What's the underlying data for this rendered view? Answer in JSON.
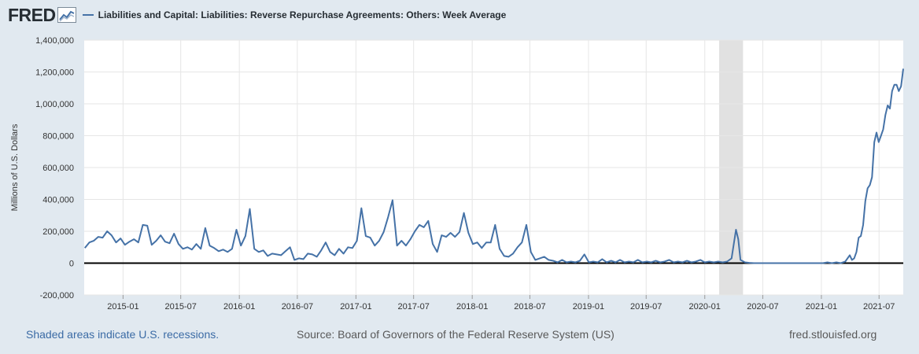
{
  "header": {
    "logo": "FRED",
    "legend_label": "Liabilities and Capital: Liabilities: Reverse Repurchase Agreements: Others: Week Average"
  },
  "footer": {
    "recession_note": "Shaded areas indicate U.S. recessions.",
    "source": "Source: Board of Governors of the Federal Reserve System (US)",
    "site": "fred.stlouisfed.org"
  },
  "colors": {
    "series": "#4572a7",
    "recession": "#e1e1e1",
    "background": "#e1e9f0"
  },
  "chart_data": {
    "type": "line",
    "title": "",
    "xlabel": "",
    "ylabel": "Millions of U.S. Dollars",
    "ylim": [
      -200000,
      1400000
    ],
    "xlim": [
      "2014-09-01",
      "2021-09-15"
    ],
    "yticks": [
      -200000,
      0,
      200000,
      400000,
      600000,
      800000,
      1000000,
      1200000,
      1400000
    ],
    "ytick_labels": [
      "-200,000",
      "0",
      "200,000",
      "400,000",
      "600,000",
      "800,000",
      "1,000,000",
      "1,200,000",
      "1,400,000"
    ],
    "xticks": [
      "2015-01-01",
      "2015-07-01",
      "2016-01-01",
      "2016-07-01",
      "2017-01-01",
      "2017-07-01",
      "2018-01-01",
      "2018-07-01",
      "2019-01-01",
      "2019-07-01",
      "2020-01-01",
      "2020-07-01",
      "2021-01-01",
      "2021-07-01"
    ],
    "xtick_labels": [
      "2015-01",
      "2015-07",
      "2016-01",
      "2016-07",
      "2017-01",
      "2017-07",
      "2018-01",
      "2018-07",
      "2019-01",
      "2019-07",
      "2020-01",
      "2020-07",
      "2021-01",
      "2021-07"
    ],
    "grid": true,
    "recessions": [
      {
        "start": "2020-02-15",
        "end": "2020-04-30"
      }
    ],
    "series": [
      {
        "name": "Liabilities and Capital: Liabilities: Reverse Repurchase Agreements: Others: Week Average",
        "points": [
          [
            "2014-09-03",
            95000
          ],
          [
            "2014-09-17",
            130000
          ],
          [
            "2014-10-01",
            140000
          ],
          [
            "2014-10-15",
            165000
          ],
          [
            "2014-10-29",
            160000
          ],
          [
            "2014-11-12",
            200000
          ],
          [
            "2014-11-26",
            175000
          ],
          [
            "2014-12-10",
            130000
          ],
          [
            "2014-12-24",
            155000
          ],
          [
            "2015-01-07",
            115000
          ],
          [
            "2015-01-21",
            135000
          ],
          [
            "2015-02-04",
            150000
          ],
          [
            "2015-02-18",
            130000
          ],
          [
            "2015-03-04",
            240000
          ],
          [
            "2015-03-18",
            235000
          ],
          [
            "2015-04-01",
            115000
          ],
          [
            "2015-04-15",
            140000
          ],
          [
            "2015-04-29",
            175000
          ],
          [
            "2015-05-13",
            135000
          ],
          [
            "2015-05-27",
            125000
          ],
          [
            "2015-06-10",
            185000
          ],
          [
            "2015-06-24",
            120000
          ],
          [
            "2015-07-08",
            90000
          ],
          [
            "2015-07-22",
            100000
          ],
          [
            "2015-08-05",
            85000
          ],
          [
            "2015-08-19",
            120000
          ],
          [
            "2015-09-02",
            90000
          ],
          [
            "2015-09-16",
            220000
          ],
          [
            "2015-09-30",
            110000
          ],
          [
            "2015-10-14",
            95000
          ],
          [
            "2015-10-28",
            75000
          ],
          [
            "2015-11-11",
            85000
          ],
          [
            "2015-11-25",
            70000
          ],
          [
            "2015-12-09",
            90000
          ],
          [
            "2015-12-23",
            210000
          ],
          [
            "2016-01-06",
            110000
          ],
          [
            "2016-01-20",
            170000
          ],
          [
            "2016-02-03",
            340000
          ],
          [
            "2016-02-17",
            90000
          ],
          [
            "2016-03-02",
            70000
          ],
          [
            "2016-03-16",
            80000
          ],
          [
            "2016-03-30",
            45000
          ],
          [
            "2016-04-13",
            60000
          ],
          [
            "2016-04-27",
            55000
          ],
          [
            "2016-05-11",
            50000
          ],
          [
            "2016-05-25",
            75000
          ],
          [
            "2016-06-08",
            100000
          ],
          [
            "2016-06-22",
            20000
          ],
          [
            "2016-07-06",
            30000
          ],
          [
            "2016-07-20",
            25000
          ],
          [
            "2016-08-03",
            60000
          ],
          [
            "2016-08-17",
            55000
          ],
          [
            "2016-08-31",
            40000
          ],
          [
            "2016-09-14",
            80000
          ],
          [
            "2016-09-28",
            130000
          ],
          [
            "2016-10-12",
            70000
          ],
          [
            "2016-10-26",
            50000
          ],
          [
            "2016-11-09",
            90000
          ],
          [
            "2016-11-23",
            60000
          ],
          [
            "2016-12-07",
            100000
          ],
          [
            "2016-12-21",
            95000
          ],
          [
            "2017-01-04",
            140000
          ],
          [
            "2017-01-18",
            345000
          ],
          [
            "2017-02-01",
            170000
          ],
          [
            "2017-02-15",
            160000
          ],
          [
            "2017-03-01",
            110000
          ],
          [
            "2017-03-15",
            140000
          ],
          [
            "2017-03-29",
            195000
          ],
          [
            "2017-04-12",
            290000
          ],
          [
            "2017-04-26",
            395000
          ],
          [
            "2017-05-10",
            110000
          ],
          [
            "2017-05-24",
            140000
          ],
          [
            "2017-06-07",
            110000
          ],
          [
            "2017-06-21",
            150000
          ],
          [
            "2017-07-05",
            200000
          ],
          [
            "2017-07-19",
            240000
          ],
          [
            "2017-08-02",
            225000
          ],
          [
            "2017-08-16",
            265000
          ],
          [
            "2017-08-30",
            120000
          ],
          [
            "2017-09-13",
            70000
          ],
          [
            "2017-09-27",
            175000
          ],
          [
            "2017-10-11",
            165000
          ],
          [
            "2017-10-25",
            190000
          ],
          [
            "2017-11-08",
            165000
          ],
          [
            "2017-11-22",
            195000
          ],
          [
            "2017-12-06",
            315000
          ],
          [
            "2017-12-20",
            190000
          ],
          [
            "2018-01-03",
            120000
          ],
          [
            "2018-01-17",
            130000
          ],
          [
            "2018-01-31",
            95000
          ],
          [
            "2018-02-14",
            130000
          ],
          [
            "2018-02-28",
            130000
          ],
          [
            "2018-03-14",
            240000
          ],
          [
            "2018-03-28",
            90000
          ],
          [
            "2018-04-11",
            45000
          ],
          [
            "2018-04-25",
            40000
          ],
          [
            "2018-05-09",
            60000
          ],
          [
            "2018-05-23",
            100000
          ],
          [
            "2018-06-06",
            130000
          ],
          [
            "2018-06-20",
            240000
          ],
          [
            "2018-07-04",
            70000
          ],
          [
            "2018-07-18",
            20000
          ],
          [
            "2018-08-01",
            30000
          ],
          [
            "2018-08-15",
            40000
          ],
          [
            "2018-08-29",
            20000
          ],
          [
            "2018-09-12",
            15000
          ],
          [
            "2018-09-26",
            5000
          ],
          [
            "2018-10-10",
            20000
          ],
          [
            "2018-10-24",
            5000
          ],
          [
            "2018-11-07",
            10000
          ],
          [
            "2018-11-21",
            5000
          ],
          [
            "2018-12-05",
            15000
          ],
          [
            "2018-12-19",
            55000
          ],
          [
            "2019-01-02",
            5000
          ],
          [
            "2019-01-16",
            10000
          ],
          [
            "2019-01-30",
            5000
          ],
          [
            "2019-02-13",
            25000
          ],
          [
            "2019-02-27",
            5000
          ],
          [
            "2019-03-13",
            15000
          ],
          [
            "2019-03-27",
            5000
          ],
          [
            "2019-04-10",
            20000
          ],
          [
            "2019-04-24",
            5000
          ],
          [
            "2019-05-08",
            10000
          ],
          [
            "2019-05-22",
            5000
          ],
          [
            "2019-06-05",
            20000
          ],
          [
            "2019-06-19",
            5000
          ],
          [
            "2019-07-03",
            10000
          ],
          [
            "2019-07-17",
            5000
          ],
          [
            "2019-07-31",
            15000
          ],
          [
            "2019-08-14",
            5000
          ],
          [
            "2019-08-28",
            10000
          ],
          [
            "2019-09-11",
            20000
          ],
          [
            "2019-09-25",
            5000
          ],
          [
            "2019-10-09",
            10000
          ],
          [
            "2019-10-23",
            5000
          ],
          [
            "2019-11-06",
            15000
          ],
          [
            "2019-11-20",
            5000
          ],
          [
            "2019-12-04",
            10000
          ],
          [
            "2019-12-18",
            20000
          ],
          [
            "2020-01-01",
            5000
          ],
          [
            "2020-01-15",
            10000
          ],
          [
            "2020-01-29",
            5000
          ],
          [
            "2020-02-12",
            10000
          ],
          [
            "2020-02-26",
            5000
          ],
          [
            "2020-03-11",
            10000
          ],
          [
            "2020-03-25",
            30000
          ],
          [
            "2020-04-08",
            210000
          ],
          [
            "2020-04-15",
            150000
          ],
          [
            "2020-04-22",
            20000
          ],
          [
            "2020-05-06",
            5000
          ],
          [
            "2020-05-20",
            2000
          ],
          [
            "2020-06-03",
            0
          ],
          [
            "2020-07-01",
            0
          ],
          [
            "2020-08-01",
            0
          ],
          [
            "2020-09-01",
            0
          ],
          [
            "2020-10-01",
            0
          ],
          [
            "2020-11-01",
            0
          ],
          [
            "2020-12-01",
            0
          ],
          [
            "2021-01-06",
            0
          ],
          [
            "2021-01-20",
            5000
          ],
          [
            "2021-02-03",
            0
          ],
          [
            "2021-02-17",
            5000
          ],
          [
            "2021-03-03",
            0
          ],
          [
            "2021-03-17",
            10000
          ],
          [
            "2021-03-31",
            50000
          ],
          [
            "2021-04-07",
            20000
          ],
          [
            "2021-04-14",
            30000
          ],
          [
            "2021-04-21",
            70000
          ],
          [
            "2021-04-28",
            160000
          ],
          [
            "2021-05-05",
            170000
          ],
          [
            "2021-05-12",
            240000
          ],
          [
            "2021-05-19",
            390000
          ],
          [
            "2021-05-26",
            470000
          ],
          [
            "2021-06-02",
            490000
          ],
          [
            "2021-06-09",
            540000
          ],
          [
            "2021-06-16",
            760000
          ],
          [
            "2021-06-23",
            820000
          ],
          [
            "2021-06-30",
            760000
          ],
          [
            "2021-07-07",
            800000
          ],
          [
            "2021-07-14",
            840000
          ],
          [
            "2021-07-21",
            930000
          ],
          [
            "2021-07-28",
            990000
          ],
          [
            "2021-08-04",
            970000
          ],
          [
            "2021-08-11",
            1080000
          ],
          [
            "2021-08-18",
            1120000
          ],
          [
            "2021-08-25",
            1120000
          ],
          [
            "2021-09-01",
            1080000
          ],
          [
            "2021-09-08",
            1110000
          ],
          [
            "2021-09-15",
            1220000
          ]
        ]
      }
    ]
  }
}
